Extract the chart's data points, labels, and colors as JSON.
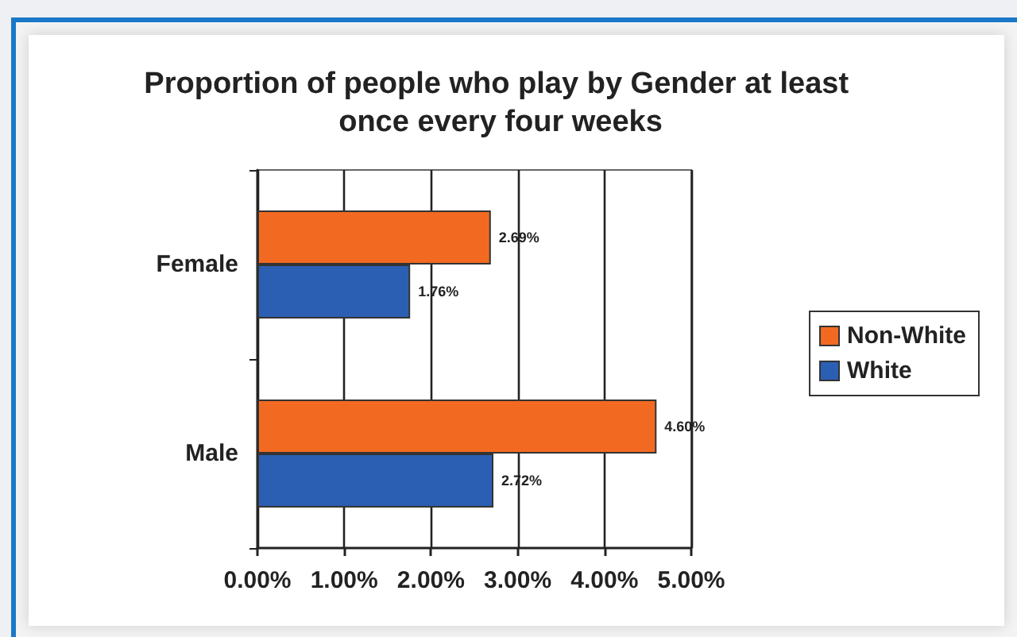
{
  "chart_data": {
    "type": "bar",
    "orientation": "horizontal",
    "title": "Proportion of people who play by Gender at least once every four weeks",
    "categories": [
      "Female",
      "Male"
    ],
    "series": [
      {
        "name": "Non-White",
        "color": "#f26a21",
        "values": [
          2.69,
          4.6
        ],
        "value_labels": [
          "2.69%",
          "4.60%"
        ]
      },
      {
        "name": "White",
        "color": "#2b5fb3",
        "values": [
          1.76,
          2.72
        ],
        "value_labels": [
          "1.76%",
          "2.72%"
        ]
      }
    ],
    "xlim": [
      0,
      5
    ],
    "xticks": [
      {
        "value": 0,
        "label": "0.00%"
      },
      {
        "value": 1,
        "label": "1.00%"
      },
      {
        "value": 2,
        "label": "2.00%"
      },
      {
        "value": 3,
        "label": "3.00%"
      },
      {
        "value": 4,
        "label": "4.00%"
      },
      {
        "value": 5,
        "label": "5.00%"
      }
    ],
    "grid": "x",
    "legend": "right"
  }
}
